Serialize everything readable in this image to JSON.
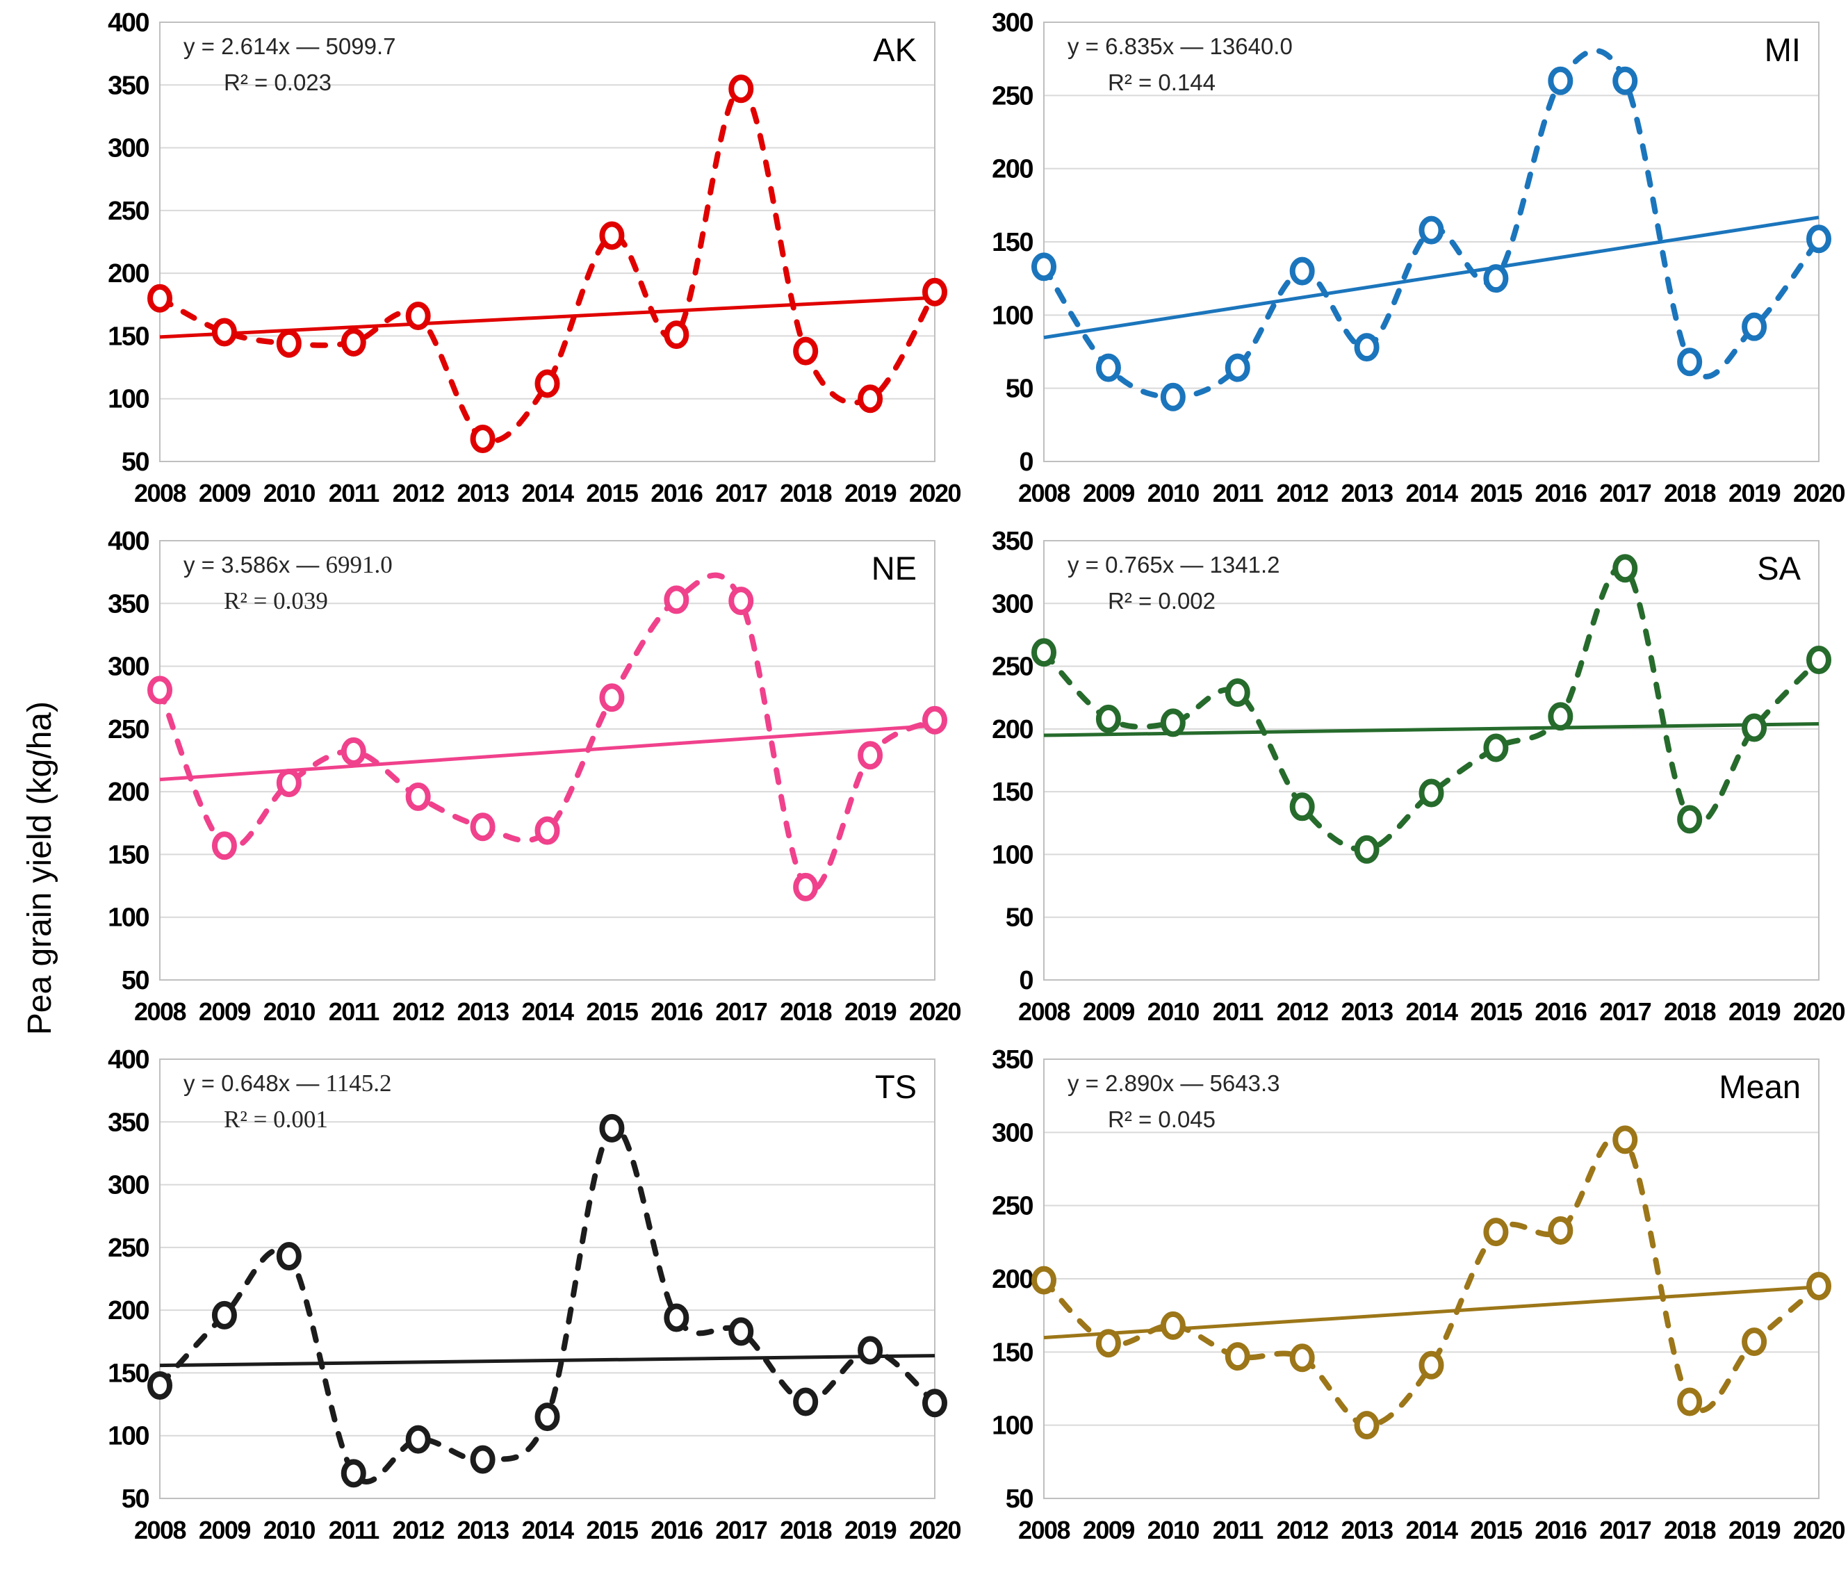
{
  "figure": {
    "ylabel": "Pea grain yield (kg/ha)",
    "background": "#FFFFFF",
    "grid_color": "#D9D9D9",
    "border_color": "#BFBFBF",
    "equation_color": "#262626"
  },
  "chart_data": [
    {
      "type": "line",
      "panel_label": "AK",
      "color": "#E00000",
      "equation_prefix": "y = 2.614x — ",
      "equation_number": "5099.7",
      "equation_number_serif": false,
      "r2_label": "R² = 0.023",
      "r2_serif": false,
      "trend_slope": 2.614,
      "trend_intercept": -5099.7,
      "x": [
        2008,
        2009,
        2010,
        2011,
        2012,
        2013,
        2014,
        2015,
        2016,
        2017,
        2018,
        2019,
        2020
      ],
      "values": [
        180,
        153,
        144,
        145,
        166,
        68,
        112,
        230,
        151,
        347,
        138,
        100,
        185
      ],
      "ylim": [
        50,
        400
      ],
      "ytick_step": 50,
      "grid": true,
      "legend": "none",
      "line_style": "dashed-smooth-with-linear-trend"
    },
    {
      "type": "line",
      "panel_label": "MI",
      "color": "#1B75BC",
      "equation_prefix": "y = 6.835x — ",
      "equation_number": "13640.0",
      "equation_number_serif": false,
      "r2_label": "R² = 0.144",
      "r2_serif": false,
      "trend_slope": 6.835,
      "trend_intercept": -13640.0,
      "x": [
        2008,
        2009,
        2010,
        2011,
        2012,
        2013,
        2014,
        2015,
        2016,
        2017,
        2018,
        2019,
        2020
      ],
      "values": [
        133,
        64,
        44,
        64,
        130,
        78,
        158,
        125,
        260,
        260,
        68,
        92,
        152
      ],
      "ylim": [
        0,
        300
      ],
      "ytick_step": 50,
      "grid": true,
      "legend": "none",
      "line_style": "dashed-smooth-with-linear-trend"
    },
    {
      "type": "line",
      "panel_label": "NE",
      "color": "#F0418C",
      "equation_prefix": "y = 3.586x — ",
      "equation_number": "6991.0",
      "equation_number_serif": true,
      "r2_label": "R² = 0.039",
      "r2_serif": true,
      "trend_slope": 3.586,
      "trend_intercept": -6991.0,
      "x": [
        2008,
        2009,
        2010,
        2011,
        2012,
        2013,
        2014,
        2015,
        2016,
        2017,
        2018,
        2019,
        2020
      ],
      "values": [
        281,
        157,
        207,
        232,
        196,
        172,
        169,
        275,
        353,
        352,
        124,
        229,
        257
      ],
      "ylim": [
        50,
        400
      ],
      "ytick_step": 50,
      "grid": true,
      "legend": "none",
      "line_style": "dashed-smooth-with-linear-trend"
    },
    {
      "type": "line",
      "panel_label": "SA",
      "color": "#266B2C",
      "equation_prefix": "y = 0.765x — ",
      "equation_number": "1341.2",
      "equation_number_serif": false,
      "r2_label": "R² = 0.002",
      "r2_serif": false,
      "trend_slope": 0.765,
      "trend_intercept": -1341.2,
      "x": [
        2008,
        2009,
        2010,
        2011,
        2012,
        2013,
        2014,
        2015,
        2016,
        2017,
        2018,
        2019,
        2020
      ],
      "values": [
        261,
        208,
        205,
        229,
        138,
        104,
        149,
        185,
        210,
        328,
        128,
        201,
        255
      ],
      "ylim": [
        0,
        350
      ],
      "ytick_step": 50,
      "grid": true,
      "legend": "none",
      "line_style": "dashed-smooth-with-linear-trend"
    },
    {
      "type": "line",
      "panel_label": "TS",
      "color": "#1C1C1C",
      "equation_prefix": "y = 0.648x — ",
      "equation_number": "1145.2",
      "equation_number_serif": true,
      "r2_label": "R² = 0.001",
      "r2_serif": true,
      "trend_slope": 0.648,
      "trend_intercept": -1145.2,
      "x": [
        2008,
        2009,
        2010,
        2011,
        2012,
        2013,
        2014,
        2015,
        2016,
        2017,
        2018,
        2019,
        2020
      ],
      "values": [
        140,
        196,
        243,
        70,
        97,
        81,
        115,
        345,
        194,
        183,
        127,
        168,
        126
      ],
      "ylim": [
        50,
        400
      ],
      "ytick_step": 50,
      "grid": true,
      "legend": "none",
      "line_style": "dashed-smooth-with-linear-trend"
    },
    {
      "type": "line",
      "panel_label": "Mean",
      "color": "#9C7618",
      "equation_prefix": "y = 2.890x — ",
      "equation_number": "5643.3",
      "equation_number_serif": false,
      "r2_label": "R² = 0.045",
      "r2_serif": false,
      "trend_slope": 2.89,
      "trend_intercept": -5643.3,
      "x": [
        2008,
        2009,
        2010,
        2011,
        2012,
        2013,
        2014,
        2015,
        2016,
        2017,
        2018,
        2019,
        2020
      ],
      "values": [
        199,
        156,
        168,
        147,
        146,
        100,
        141,
        232,
        233,
        295,
        116,
        157,
        195
      ],
      "ylim": [
        50,
        350
      ],
      "ytick_step": 50,
      "grid": true,
      "legend": "none",
      "line_style": "dashed-smooth-with-linear-trend"
    }
  ]
}
